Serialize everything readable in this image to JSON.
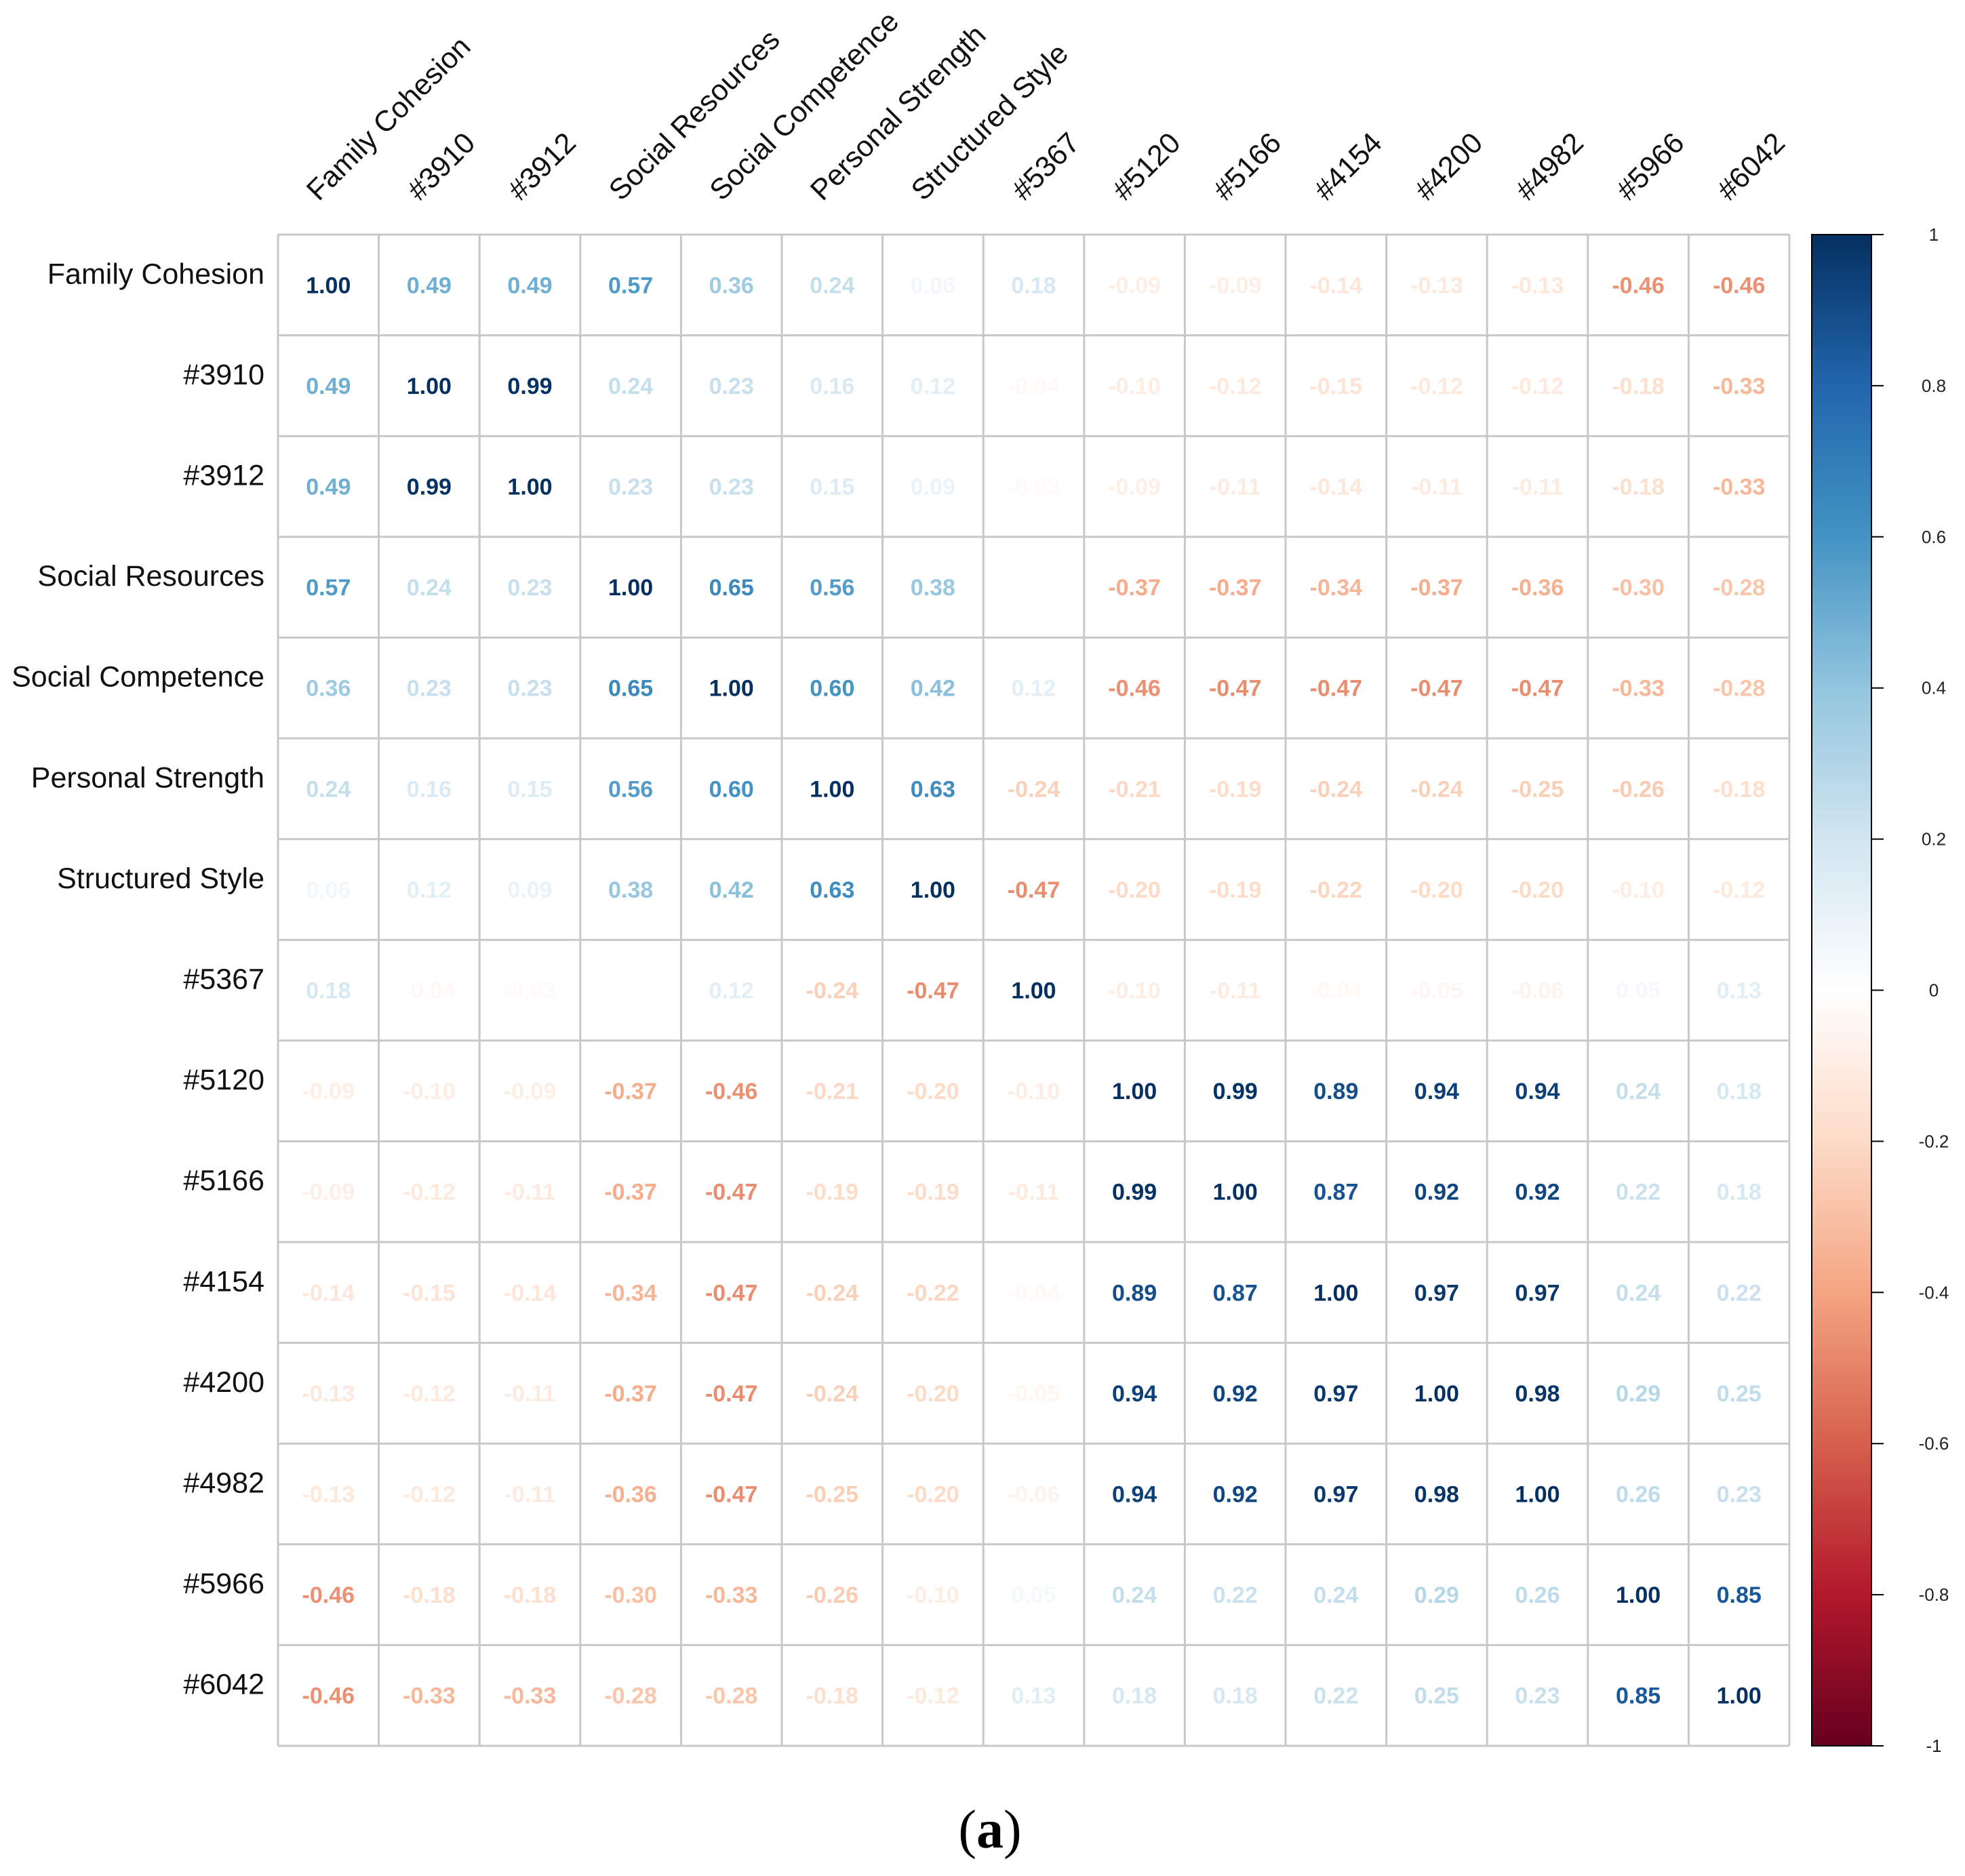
{
  "chart_data": {
    "type": "heatmap",
    "title": "",
    "caption_open": "(",
    "caption_letter": "a",
    "caption_close": ")",
    "labels": [
      "Family Cohesion",
      "#3910",
      "#3912",
      "Social Resources",
      "Social Competence",
      "Personal Strength",
      "Structured Style",
      "#5367",
      "#5120",
      "#5166",
      "#4154",
      "#4200",
      "#4982",
      "#5966",
      "#6042"
    ],
    "matrix": [
      [
        1.0,
        0.49,
        0.49,
        0.57,
        0.36,
        0.24,
        0.06,
        0.18,
        -0.09,
        -0.09,
        -0.14,
        -0.13,
        -0.13,
        -0.46,
        -0.46
      ],
      [
        0.49,
        1.0,
        0.99,
        0.24,
        0.23,
        0.16,
        0.12,
        -0.04,
        -0.1,
        -0.12,
        -0.15,
        -0.12,
        -0.12,
        -0.18,
        -0.33
      ],
      [
        0.49,
        0.99,
        1.0,
        0.23,
        0.23,
        0.15,
        0.09,
        -0.03,
        -0.09,
        -0.11,
        -0.14,
        -0.11,
        -0.11,
        -0.18,
        -0.33
      ],
      [
        0.57,
        0.24,
        0.23,
        1.0,
        0.65,
        0.56,
        0.38,
        null,
        -0.37,
        -0.37,
        -0.34,
        -0.37,
        -0.36,
        -0.3,
        -0.28
      ],
      [
        0.36,
        0.23,
        0.23,
        0.65,
        1.0,
        0.6,
        0.42,
        0.12,
        -0.46,
        -0.47,
        -0.47,
        -0.47,
        -0.47,
        -0.33,
        -0.28
      ],
      [
        0.24,
        0.16,
        0.15,
        0.56,
        0.6,
        1.0,
        0.63,
        -0.24,
        -0.21,
        -0.19,
        -0.24,
        -0.24,
        -0.25,
        -0.26,
        -0.18
      ],
      [
        0.06,
        0.12,
        0.09,
        0.38,
        0.42,
        0.63,
        1.0,
        -0.47,
        -0.2,
        -0.19,
        -0.22,
        -0.2,
        -0.2,
        -0.1,
        -0.12
      ],
      [
        0.18,
        -0.04,
        -0.03,
        null,
        0.12,
        -0.24,
        -0.47,
        1.0,
        -0.1,
        -0.11,
        -0.04,
        -0.05,
        -0.06,
        0.05,
        0.13
      ],
      [
        -0.09,
        -0.1,
        -0.09,
        -0.37,
        -0.46,
        -0.21,
        -0.2,
        -0.1,
        1.0,
        0.99,
        0.89,
        0.94,
        0.94,
        0.24,
        0.18
      ],
      [
        -0.09,
        -0.12,
        -0.11,
        -0.37,
        -0.47,
        -0.19,
        -0.19,
        -0.11,
        0.99,
        1.0,
        0.87,
        0.92,
        0.92,
        0.22,
        0.18
      ],
      [
        -0.14,
        -0.15,
        -0.14,
        -0.34,
        -0.47,
        -0.24,
        -0.22,
        -0.04,
        0.89,
        0.87,
        1.0,
        0.97,
        0.97,
        0.24,
        0.22
      ],
      [
        -0.13,
        -0.12,
        -0.11,
        -0.37,
        -0.47,
        -0.24,
        -0.2,
        -0.05,
        0.94,
        0.92,
        0.97,
        1.0,
        0.98,
        0.29,
        0.25
      ],
      [
        -0.13,
        -0.12,
        -0.11,
        -0.36,
        -0.47,
        -0.25,
        -0.2,
        -0.06,
        0.94,
        0.92,
        0.97,
        0.98,
        1.0,
        0.26,
        0.23
      ],
      [
        -0.46,
        -0.18,
        -0.18,
        -0.3,
        -0.33,
        -0.26,
        -0.1,
        0.05,
        0.24,
        0.22,
        0.24,
        0.29,
        0.26,
        1.0,
        0.85
      ],
      [
        -0.46,
        -0.33,
        -0.33,
        -0.28,
        -0.28,
        -0.18,
        -0.12,
        0.13,
        0.18,
        0.18,
        0.22,
        0.25,
        0.23,
        0.85,
        1.0
      ]
    ],
    "colorbar": {
      "range": [
        -1,
        1
      ],
      "ticks": [
        "1",
        "0.8",
        "0.6",
        "0.4",
        "0.2",
        "0",
        "-0.2",
        "-0.4",
        "-0.6",
        "-0.8",
        "-1"
      ],
      "colors": [
        "#67001f",
        "#b2182b",
        "#d6604d",
        "#f4a582",
        "#fddbc7",
        "#ffffff",
        "#d1e5f0",
        "#92c5de",
        "#4393c3",
        "#2166ac",
        "#053061"
      ]
    }
  }
}
